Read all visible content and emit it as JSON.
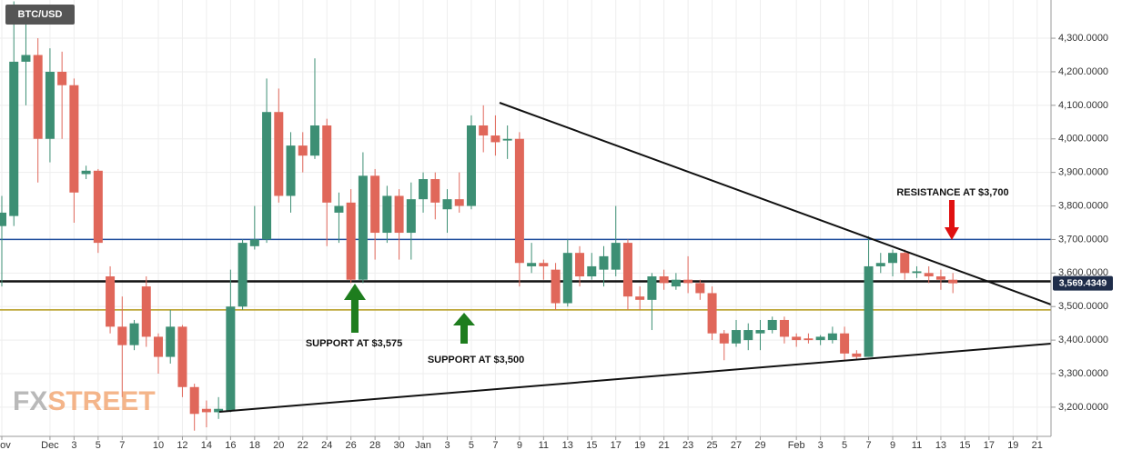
{
  "chart_data": {
    "type": "candlestick",
    "title": "BTC/USD",
    "watermark": [
      "FX",
      "STREET"
    ],
    "categories": [
      "Nov",
      null,
      null,
      null,
      "Dec",
      null,
      "3",
      null,
      "5",
      null,
      "7",
      null,
      null,
      "10",
      null,
      "12",
      null,
      "14",
      null,
      "16",
      null,
      "18",
      null,
      "20",
      null,
      "22",
      null,
      "24",
      null,
      "26",
      null,
      "28",
      null,
      "30",
      null,
      "Jan",
      null,
      "3",
      null,
      "5",
      null,
      "7",
      null,
      "9",
      null,
      "11",
      null,
      "13",
      null,
      "15",
      null,
      "17",
      null,
      "19",
      null,
      "21",
      null,
      "23",
      null,
      "25",
      null,
      "27",
      null,
      "29",
      null,
      null,
      "Feb",
      null,
      "3",
      null,
      "5",
      null,
      "7",
      null,
      "9",
      null,
      "11",
      null,
      "13",
      null,
      "15",
      null,
      "17",
      null,
      "19",
      null,
      "21"
    ],
    "open": [
      3740,
      3770,
      4230,
      4250,
      4000,
      4200,
      4160,
      3895,
      3905,
      3590,
      3440,
      3385,
      3560,
      3410,
      3350,
      3440,
      3260,
      3195,
      3185,
      3190,
      3500,
      3680,
      3700,
      4080,
      3830,
      3980,
      3950,
      4040,
      3780,
      3810,
      3580,
      3890,
      3720,
      3830,
      3720,
      3820,
      3880,
      3790,
      3820,
      3800,
      4040,
      4010,
      3995,
      4000,
      3620,
      3630,
      3610,
      3510,
      3660,
      3590,
      3610,
      3610,
      3690,
      3530,
      3520,
      3590,
      3560,
      3580,
      3570,
      3540,
      3420,
      3390,
      3400,
      3420,
      3430,
      3460,
      3410,
      3405,
      3400,
      3400,
      3420,
      3360,
      3350,
      3620,
      3630,
      3660,
      3600,
      3600,
      3590,
      3580,
      null,
      null,
      null,
      null,
      null,
      null,
      null
    ],
    "high": [
      3830,
      4410,
      4390,
      4300,
      4270,
      4260,
      4180,
      3920,
      3910,
      3620,
      3530,
      3460,
      3590,
      3420,
      3490,
      3445,
      3270,
      3220,
      3230,
      3610,
      3700,
      3800,
      4180,
      4150,
      4020,
      4020,
      4240,
      4060,
      3840,
      3850,
      3960,
      3910,
      3860,
      3850,
      3870,
      3900,
      3900,
      3850,
      3900,
      4070,
      4100,
      4070,
      4040,
      4020,
      3690,
      3640,
      3630,
      3700,
      3680,
      3660,
      3680,
      3800,
      3700,
      3560,
      3600,
      3610,
      3600,
      3650,
      3580,
      3560,
      3430,
      3460,
      3450,
      3460,
      3470,
      3470,
      3420,
      3420,
      3415,
      3440,
      3440,
      3370,
      3710,
      3660,
      3670,
      3670,
      3620,
      3620,
      3610,
      3600,
      null,
      null,
      null,
      null,
      null,
      null,
      null
    ],
    "low": [
      3560,
      3740,
      4100,
      3870,
      3930,
      4000,
      3750,
      3880,
      3660,
      3420,
      3230,
      3370,
      3380,
      3300,
      3330,
      3230,
      3130,
      3140,
      3165,
      3185,
      3490,
      3670,
      3690,
      3810,
      3780,
      3900,
      3940,
      3680,
      3690,
      3570,
      3570,
      3640,
      3690,
      3640,
      3640,
      3780,
      3760,
      3720,
      3780,
      3790,
      3960,
      3950,
      3940,
      3560,
      3600,
      3580,
      3490,
      3500,
      3560,
      3580,
      3560,
      3590,
      3490,
      3490,
      3430,
      3550,
      3550,
      3540,
      3520,
      3400,
      3340,
      3380,
      3370,
      3370,
      3420,
      3390,
      3380,
      3390,
      3385,
      3390,
      3340,
      3340,
      3350,
      3600,
      3590,
      3580,
      3585,
      3570,
      3550,
      3540,
      null,
      null,
      null,
      null,
      null,
      null,
      null
    ],
    "close": [
      3780,
      4230,
      4250,
      4000,
      4200,
      4160,
      3840,
      3905,
      3690,
      3440,
      3385,
      3450,
      3410,
      3350,
      3440,
      3260,
      3180,
      3185,
      3195,
      3500,
      3690,
      3700,
      4080,
      3830,
      3980,
      3950,
      4040,
      3810,
      3800,
      3580,
      3890,
      3720,
      3830,
      3720,
      3820,
      3880,
      3810,
      3820,
      3800,
      4040,
      4010,
      3990,
      4000,
      3630,
      3630,
      3620,
      3510,
      3660,
      3590,
      3620,
      3650,
      3690,
      3530,
      3520,
      3590,
      3570,
      3580,
      3570,
      3540,
      3420,
      3390,
      3430,
      3430,
      3430,
      3460,
      3410,
      3400,
      3400,
      3410,
      3420,
      3360,
      3350,
      3620,
      3630,
      3660,
      3600,
      3605,
      3590,
      3580,
      3569.4349,
      null,
      null,
      null,
      null,
      null,
      null,
      null
    ],
    "last_label": "3,569.4349",
    "up_color": "#3d8f74",
    "down_color": "#e0675a",
    "ylim": [
      3113,
      4414
    ],
    "yticks": [
      {
        "value": 3200,
        "label": "3,200.0000"
      },
      {
        "value": 3300,
        "label": "3,300.0000"
      },
      {
        "value": 3400,
        "label": "3,400.0000"
      },
      {
        "value": 3500,
        "label": "3,500.0000"
      },
      {
        "value": 3600,
        "label": "3,600.0000"
      },
      {
        "value": 3700,
        "label": "3,700.0000"
      },
      {
        "value": 3800,
        "label": "3,800.0000"
      },
      {
        "value": 3900,
        "label": "3,900.0000"
      },
      {
        "value": 4000,
        "label": "4,000.0000"
      },
      {
        "value": 4100,
        "label": "4,100.0000"
      },
      {
        "value": 4200,
        "label": "4,200.0000"
      },
      {
        "value": 4300,
        "label": "4,300.0000"
      }
    ],
    "grid": true,
    "levels": [
      {
        "value": 3700,
        "color": "#1f4e9c",
        "width": 1.5
      },
      {
        "value": 3575,
        "color": "#111111",
        "width": 2.5
      },
      {
        "value": 3490,
        "color": "#b59a1a",
        "width": 1.5
      }
    ],
    "annotations": [
      "RESISTANCE AT $3,700",
      "SUPPORT AT $3,575",
      "SUPPORT AT $3,500"
    ]
  }
}
